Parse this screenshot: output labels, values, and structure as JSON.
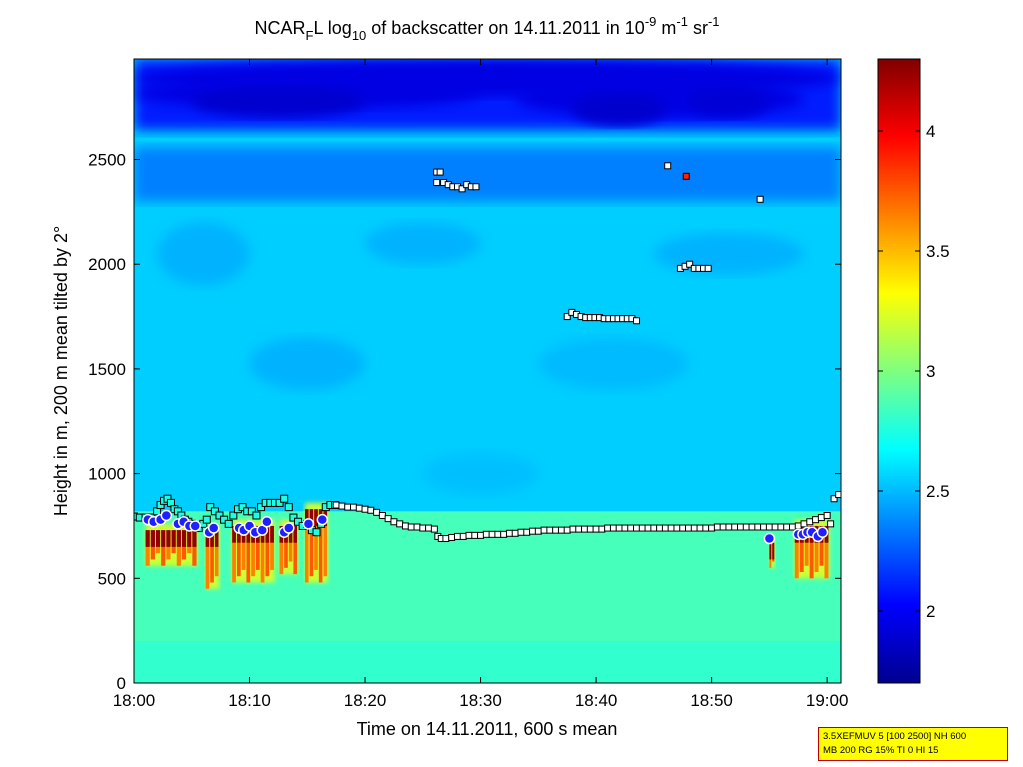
{
  "chart_data": {
    "type": "heatmap",
    "title": {
      "parts": [
        {
          "text": "NCAR",
          "style": "normal"
        },
        {
          "text": "F",
          "style": "sub"
        },
        {
          "text": "L log",
          "style": "normal"
        },
        {
          "text": "10",
          "style": "sub"
        },
        {
          "text": " of backscatter on 14.11.2011 in 10",
          "style": "normal"
        },
        {
          "text": "-9",
          "style": "sup"
        },
        {
          "text": " m",
          "style": "normal"
        },
        {
          "text": "-1",
          "style": "sup"
        },
        {
          "text": " sr",
          "style": "normal"
        },
        {
          "text": "-1",
          "style": "sup"
        }
      ]
    },
    "xlabel": "Time on 14.11.2011, 600 s mean",
    "ylabel": "Height in m, 200 m mean tilted by 2°",
    "x_ticks": [
      "18:00",
      "18:10",
      "18:20",
      "18:30",
      "18:40",
      "18:50",
      "19:00"
    ],
    "x_tick_minutes": [
      0,
      10,
      20,
      30,
      40,
      50,
      60
    ],
    "xlim_minutes": [
      0,
      61.2
    ],
    "y_ticks": [
      0,
      500,
      1000,
      1500,
      2000,
      2500
    ],
    "ylim": [
      0,
      2980
    ],
    "colorbar": {
      "range": [
        1.7,
        4.3
      ],
      "ticks": [
        2,
        2.5,
        3,
        3.5,
        4
      ],
      "tick_labels": [
        "2",
        "2.5",
        "3",
        "3.5",
        "4"
      ],
      "colormap": "jet"
    },
    "field_description_levels": {
      "ground_to_boundary_layer": 2.85,
      "free_troposphere": 2.55,
      "top_region_above_2700m": 1.9
    },
    "layer_top_markers": {
      "marker": "square-cyan-edge",
      "points": [
        [
          0,
          795
        ],
        [
          0.5,
          790
        ],
        [
          1,
          790
        ],
        [
          1.5,
          790
        ],
        [
          2,
          820
        ],
        [
          2.3,
          850
        ],
        [
          2.6,
          870
        ],
        [
          2.9,
          880
        ],
        [
          3.2,
          860
        ],
        [
          3.5,
          830
        ],
        [
          3.8,
          820
        ],
        [
          4.1,
          800
        ],
        [
          4.4,
          780
        ],
        [
          4.7,
          770
        ],
        [
          5,
          760
        ],
        [
          5.3,
          750
        ],
        [
          5.6,
          740
        ],
        [
          6,
          760
        ],
        [
          6.3,
          780
        ],
        [
          6.6,
          840
        ],
        [
          7,
          820
        ],
        [
          7.4,
          800
        ],
        [
          7.8,
          780
        ],
        [
          8.2,
          760
        ],
        [
          8.6,
          800
        ],
        [
          9,
          830
        ],
        [
          9.4,
          840
        ],
        [
          9.8,
          820
        ],
        [
          10.2,
          820
        ],
        [
          10.6,
          800
        ],
        [
          11,
          840
        ],
        [
          11.4,
          860
        ],
        [
          11.8,
          860
        ],
        [
          12.2,
          860
        ],
        [
          12.6,
          860
        ],
        [
          13,
          880
        ],
        [
          13.4,
          840
        ],
        [
          13.8,
          790
        ],
        [
          14.2,
          770
        ],
        [
          14.6,
          750
        ],
        [
          15,
          760
        ],
        [
          15.4,
          730
        ],
        [
          15.8,
          720
        ],
        [
          16.2,
          760
        ],
        [
          16.6,
          840
        ],
        [
          17,
          850
        ],
        [
          17.4,
          850
        ]
      ]
    },
    "boundary_layer_line": {
      "marker": "square-white-small",
      "points": [
        [
          17.5,
          850
        ],
        [
          18.0,
          845
        ],
        [
          18.5,
          840
        ],
        [
          19.0,
          840
        ],
        [
          19.5,
          835
        ],
        [
          20.0,
          830
        ],
        [
          20.5,
          825
        ],
        [
          21.0,
          815
        ],
        [
          21.5,
          800
        ],
        [
          22.0,
          785
        ],
        [
          22.5,
          770
        ],
        [
          23.0,
          760
        ],
        [
          23.5,
          750
        ],
        [
          24.0,
          745
        ],
        [
          24.5,
          745
        ],
        [
          25.0,
          740
        ],
        [
          25.5,
          740
        ],
        [
          26.0,
          735
        ],
        [
          26.3,
          700
        ],
        [
          26.6,
          690
        ],
        [
          27.0,
          690
        ],
        [
          27.5,
          695
        ],
        [
          28.0,
          700
        ],
        [
          28.5,
          700
        ],
        [
          29.0,
          705
        ],
        [
          29.5,
          705
        ],
        [
          30.0,
          705
        ],
        [
          30.5,
          710
        ],
        [
          31.0,
          710
        ],
        [
          31.5,
          710
        ],
        [
          32.0,
          710
        ],
        [
          32.5,
          715
        ],
        [
          33.0,
          715
        ],
        [
          33.5,
          720
        ],
        [
          34.0,
          720
        ],
        [
          34.5,
          725
        ],
        [
          35.0,
          725
        ],
        [
          35.5,
          730
        ],
        [
          36.0,
          730
        ],
        [
          36.5,
          730
        ],
        [
          37.0,
          730
        ],
        [
          37.5,
          730
        ],
        [
          38.0,
          735
        ],
        [
          38.5,
          735
        ],
        [
          39.0,
          735
        ],
        [
          39.5,
          735
        ],
        [
          40.0,
          735
        ],
        [
          40.5,
          735
        ],
        [
          41.0,
          740
        ],
        [
          41.5,
          740
        ],
        [
          42.0,
          740
        ],
        [
          42.5,
          740
        ],
        [
          43.0,
          740
        ],
        [
          43.5,
          740
        ],
        [
          44.0,
          740
        ],
        [
          44.5,
          740
        ],
        [
          45.0,
          740
        ],
        [
          45.5,
          740
        ],
        [
          46.0,
          740
        ],
        [
          46.5,
          740
        ],
        [
          47.0,
          740
        ],
        [
          47.5,
          740
        ],
        [
          48.0,
          740
        ],
        [
          48.5,
          740
        ],
        [
          49.0,
          740
        ],
        [
          49.5,
          740
        ],
        [
          50.0,
          740
        ],
        [
          50.5,
          745
        ],
        [
          51.0,
          745
        ],
        [
          51.5,
          745
        ],
        [
          52.0,
          745
        ],
        [
          52.5,
          745
        ],
        [
          53.0,
          745
        ],
        [
          53.5,
          745
        ],
        [
          54.0,
          745
        ],
        [
          54.5,
          745
        ],
        [
          55.0,
          745
        ],
        [
          55.5,
          745
        ],
        [
          56.0,
          745
        ],
        [
          56.5,
          745
        ],
        [
          57.0,
          745
        ],
        [
          57.5,
          750
        ],
        [
          58.0,
          760
        ],
        [
          58.5,
          770
        ],
        [
          59.0,
          780
        ],
        [
          59.5,
          790
        ],
        [
          60.0,
          800
        ],
        [
          60.3,
          760
        ],
        [
          60.6,
          880
        ],
        [
          61.0,
          900
        ]
      ]
    },
    "elevated_layers": {
      "marker": "square-white",
      "points": [
        [
          26.2,
          2440
        ],
        [
          26.5,
          2440
        ],
        [
          26.2,
          2390
        ],
        [
          26.8,
          2390
        ],
        [
          27.2,
          2380
        ],
        [
          27.6,
          2370
        ],
        [
          28.0,
          2370
        ],
        [
          28.4,
          2360
        ],
        [
          28.8,
          2380
        ],
        [
          29.2,
          2370
        ],
        [
          29.6,
          2370
        ],
        [
          37.5,
          1750
        ],
        [
          37.9,
          1770
        ],
        [
          38.3,
          1760
        ],
        [
          38.7,
          1750
        ],
        [
          39.1,
          1745
        ],
        [
          39.5,
          1745
        ],
        [
          39.9,
          1745
        ],
        [
          40.3,
          1745
        ],
        [
          40.7,
          1740
        ],
        [
          41.1,
          1740
        ],
        [
          41.5,
          1740
        ],
        [
          41.9,
          1740
        ],
        [
          42.3,
          1740
        ],
        [
          42.7,
          1740
        ],
        [
          43.1,
          1740
        ],
        [
          43.5,
          1730
        ],
        [
          47.3,
          1980
        ],
        [
          47.7,
          1990
        ],
        [
          48.1,
          2000
        ],
        [
          48.5,
          1980
        ],
        [
          48.9,
          1980
        ],
        [
          49.3,
          1980
        ],
        [
          49.7,
          1980
        ],
        [
          46.2,
          2470
        ],
        [
          54.2,
          2310
        ]
      ]
    },
    "highlight_marker": {
      "marker": "square-red",
      "points": [
        [
          47.8,
          2420
        ]
      ]
    },
    "cloud_base_markers": {
      "marker": "circle-white-edge-blue-fill",
      "points": [
        [
          1.2,
          780
        ],
        [
          1.7,
          770
        ],
        [
          2.3,
          780
        ],
        [
          2.8,
          800
        ],
        [
          3.8,
          760
        ],
        [
          4.3,
          770
        ],
        [
          4.8,
          750
        ],
        [
          5.3,
          750
        ],
        [
          6.5,
          720
        ],
        [
          6.9,
          740
        ],
        [
          9.1,
          740
        ],
        [
          9.5,
          730
        ],
        [
          10.0,
          750
        ],
        [
          10.5,
          720
        ],
        [
          11.1,
          730
        ],
        [
          11.5,
          770
        ],
        [
          13.0,
          720
        ],
        [
          13.4,
          740
        ],
        [
          15.1,
          760
        ],
        [
          16.3,
          780
        ],
        [
          55.0,
          690
        ],
        [
          57.5,
          710
        ],
        [
          57.9,
          710
        ],
        [
          58.3,
          720
        ],
        [
          58.7,
          720
        ],
        [
          59.2,
          700
        ],
        [
          59.6,
          720
        ]
      ]
    },
    "aerosol_plumes": [
      {
        "x": [
          1,
          5.5
        ],
        "base": 560,
        "top": 760
      },
      {
        "x": [
          6.2,
          7.4
        ],
        "base": 450,
        "top": 760
      },
      {
        "x": [
          8.5,
          12.2
        ],
        "base": 480,
        "top": 780
      },
      {
        "x": [
          12.6,
          14.2
        ],
        "base": 520,
        "top": 780
      },
      {
        "x": [
          14.8,
          16.8
        ],
        "base": 480,
        "top": 860
      },
      {
        "x": [
          55,
          55.5
        ],
        "base": 550,
        "top": 700
      },
      {
        "x": [
          57.2,
          60.2
        ],
        "base": 500,
        "top": 780
      }
    ]
  },
  "info_box": {
    "line1": "3.5XEFMUV 5 [100 2500] NH 600",
    "line2": "MB 200 RG 15% TI 0 HI 15"
  }
}
